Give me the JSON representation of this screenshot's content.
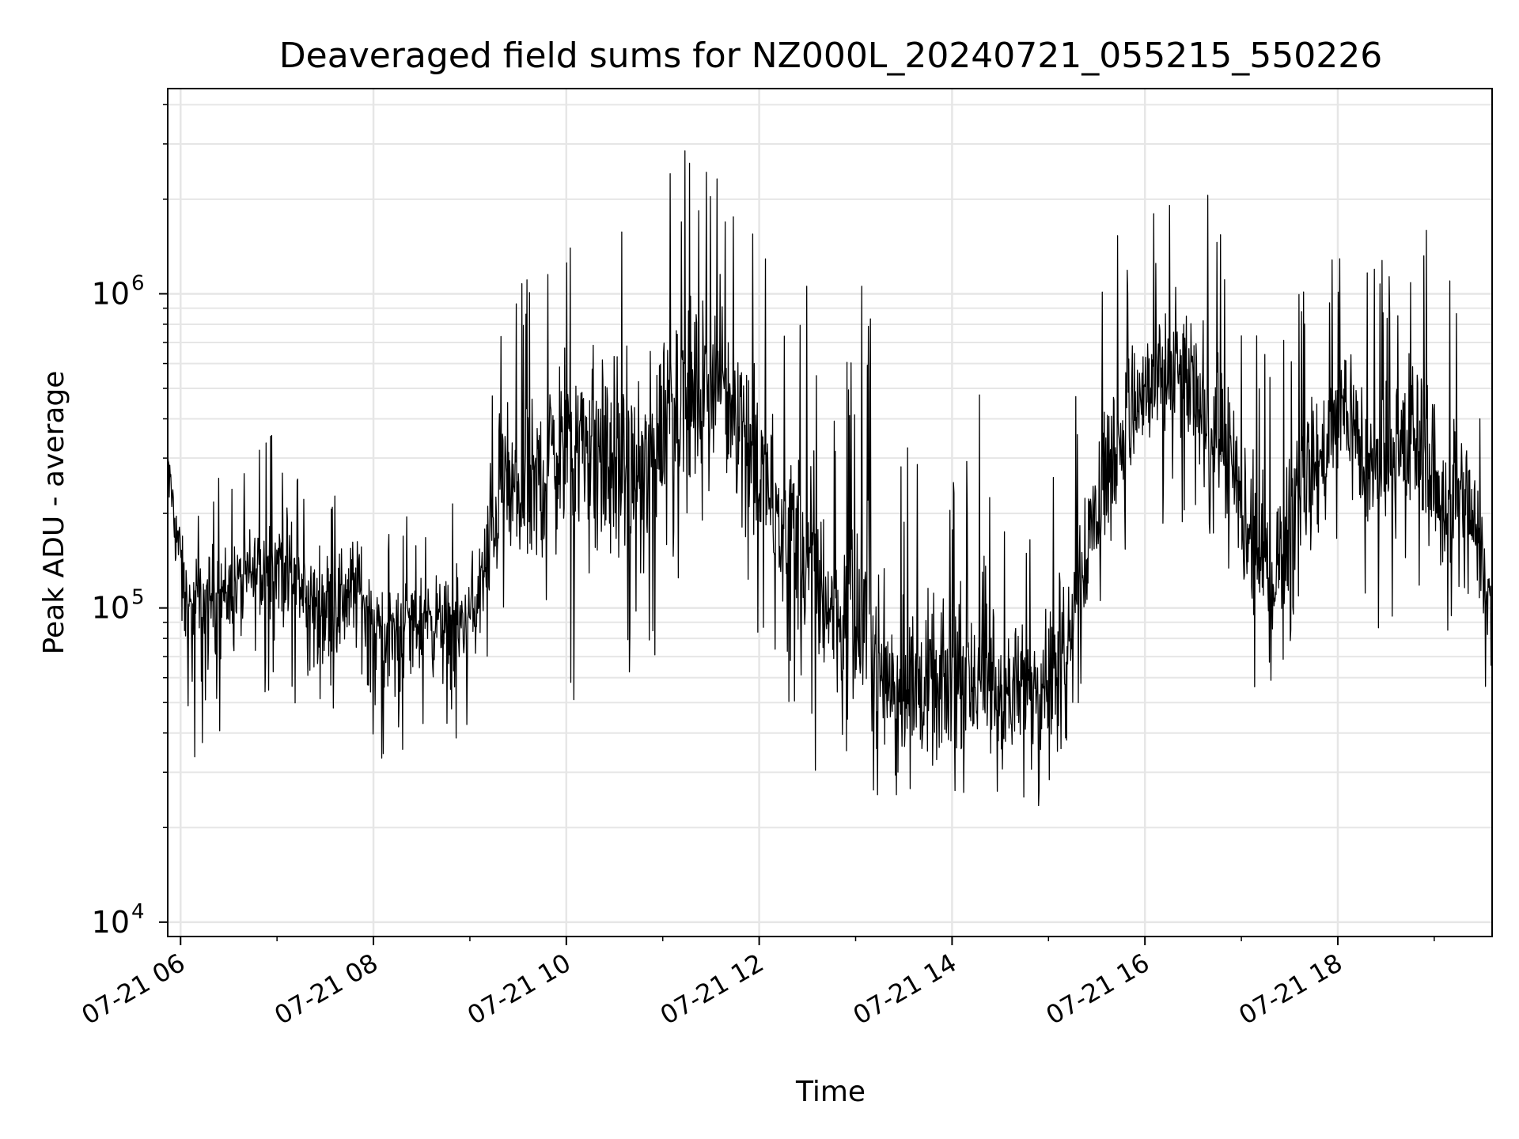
{
  "chart_data": {
    "type": "line",
    "title": "Deaveraged field sums for NZ000L_20240721_055215_550226",
    "xlabel": "Time",
    "ylabel": "Peak ADU - average",
    "yscale": "log",
    "ylim": [
      9000,
      4500000
    ],
    "xlim": [
      "2024-07-21T05:52",
      "2024-07-21T19:36"
    ],
    "grid": true,
    "line_color": "#000000",
    "grid_color": "#e6e6e6",
    "x_ticks": [
      {
        "t": "2024-07-21T06:00",
        "label": "07-21 06"
      },
      {
        "t": "2024-07-21T08:00",
        "label": "07-21 08"
      },
      {
        "t": "2024-07-21T10:00",
        "label": "07-21 10"
      },
      {
        "t": "2024-07-21T12:00",
        "label": "07-21 12"
      },
      {
        "t": "2024-07-21T14:00",
        "label": "07-21 14"
      },
      {
        "t": "2024-07-21T16:00",
        "label": "07-21 16"
      },
      {
        "t": "2024-07-21T18:00",
        "label": "07-21 18"
      }
    ],
    "y_ticks": [
      {
        "value": 10000,
        "base": "10",
        "exp": "4"
      },
      {
        "value": 100000,
        "base": "10",
        "exp": "5"
      },
      {
        "value": 1000000,
        "base": "10",
        "exp": "6"
      }
    ],
    "series": [
      {
        "x": [
          "2024-07-21T05:52",
          "2024-07-21T06:05",
          "2024-07-21T06:20",
          "2024-07-21T06:35",
          "2024-07-21T06:50",
          "2024-07-21T07:05",
          "2024-07-21T07:20",
          "2024-07-21T07:35",
          "2024-07-21T07:50",
          "2024-07-21T08:05",
          "2024-07-21T08:20",
          "2024-07-21T08:35",
          "2024-07-21T08:50",
          "2024-07-21T09:05",
          "2024-07-21T09:20",
          "2024-07-21T09:35",
          "2024-07-21T09:50",
          "2024-07-21T10:05",
          "2024-07-21T10:20",
          "2024-07-21T10:35",
          "2024-07-21T10:50",
          "2024-07-21T11:05",
          "2024-07-21T11:20",
          "2024-07-21T11:35",
          "2024-07-21T11:50",
          "2024-07-21T12:05",
          "2024-07-21T12:20",
          "2024-07-21T12:35",
          "2024-07-21T12:50",
          "2024-07-21T13:05",
          "2024-07-21T13:20",
          "2024-07-21T13:35",
          "2024-07-21T13:50",
          "2024-07-21T14:05",
          "2024-07-21T14:20",
          "2024-07-21T14:35",
          "2024-07-21T14:50",
          "2024-07-21T15:05",
          "2024-07-21T15:20",
          "2024-07-21T15:35",
          "2024-07-21T15:50",
          "2024-07-21T16:05",
          "2024-07-21T16:20",
          "2024-07-21T16:35",
          "2024-07-21T16:50",
          "2024-07-21T17:05",
          "2024-07-21T17:20",
          "2024-07-21T17:35",
          "2024-07-21T17:50",
          "2024-07-21T18:05",
          "2024-07-21T18:20",
          "2024-07-21T18:35",
          "2024-07-21T18:50",
          "2024-07-21T19:05",
          "2024-07-21T19:20",
          "2024-07-21T19:36"
        ],
        "y": [
          300000,
          95000,
          110000,
          120000,
          130000,
          150000,
          100000,
          110000,
          120000,
          80000,
          90000,
          95000,
          85000,
          100000,
          250000,
          200000,
          300000,
          350000,
          300000,
          280000,
          250000,
          500000,
          450000,
          550000,
          400000,
          220000,
          180000,
          120000,
          90000,
          80000,
          60000,
          55000,
          50000,
          60000,
          55000,
          50000,
          60000,
          65000,
          130000,
          250000,
          400000,
          500000,
          550000,
          450000,
          300000,
          150000,
          120000,
          250000,
          300000,
          450000,
          250000,
          300000,
          350000,
          200000,
          220000,
          100000
        ],
        "y_low": [
          130000,
          25000,
          40000,
          40000,
          50000,
          45000,
          30000,
          35000,
          40000,
          25000,
          30000,
          40000,
          35000,
          50000,
          90000,
          60000,
          80000,
          50000,
          60000,
          60000,
          50000,
          120000,
          110000,
          140000,
          100000,
          70000,
          45000,
          30000,
          35000,
          25000,
          22000,
          20000,
          20000,
          22000,
          20000,
          18000,
          22000,
          25000,
          50000,
          90000,
          150000,
          180000,
          190000,
          160000,
          110000,
          55000,
          45000,
          80000,
          100000,
          150000,
          80000,
          90000,
          100000,
          80000,
          90000,
          35000
        ],
        "y_high": [
          330000,
          210000,
          290000,
          260000,
          390000,
          330000,
          290000,
          260000,
          300000,
          200000,
          200000,
          200000,
          220000,
          350000,
          1200000,
          1300000,
          1600000,
          2800000,
          2600000,
          1900000,
          1600000,
          3100000,
          2800000,
          2600000,
          2200000,
          1300000,
          800000,
          1300000,
          500000,
          1300000,
          330000,
          350000,
          300000,
          300000,
          600000,
          200000,
          170000,
          300000,
          600000,
          1600000,
          1500000,
          3400000,
          2100000,
          2100000,
          2000000,
          900000,
          600000,
          1300000,
          900000,
          2200000,
          1400000,
          1200000,
          2300000,
          1500000,
          1200000,
          300000
        ]
      }
    ]
  }
}
